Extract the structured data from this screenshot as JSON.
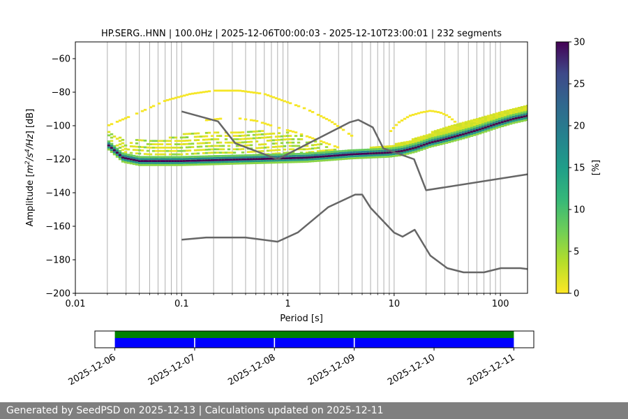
{
  "chart_data": {
    "type": "heatmap",
    "title": "HP.SERG..HNN | 100.0Hz | 2025-12-06T00:00:03 - 2025-12-10T23:00:01 | 232 segments",
    "xlabel": "Period [s]",
    "ylabel_prefix": "Amplitude [",
    "ylabel_m": "m",
    "ylabel_sup1": "2",
    "ylabel_mid": "/s",
    "ylabel_sup2": "4",
    "ylabel_tail": "/Hz",
    "ylabel_suffix": "] [dB]",
    "x_scale": "log",
    "xlim": [
      0.01,
      180
    ],
    "ylim": [
      -200,
      -50
    ],
    "x_ticks": [
      {
        "v": 0.01,
        "label": "0.01"
      },
      {
        "v": 0.1,
        "label": "0.1"
      },
      {
        "v": 1,
        "label": "1"
      },
      {
        "v": 10,
        "label": "10"
      },
      {
        "v": 100,
        "label": "100"
      }
    ],
    "y_ticks": [
      {
        "v": -60,
        "label": "−60"
      },
      {
        "v": -80,
        "label": "−80"
      },
      {
        "v": -100,
        "label": "−100"
      },
      {
        "v": -120,
        "label": "−120"
      },
      {
        "v": -140,
        "label": "−140"
      },
      {
        "v": -160,
        "label": "−160"
      },
      {
        "v": -180,
        "label": "−180"
      },
      {
        "v": -200,
        "label": "−200"
      }
    ],
    "grid": "vertical-log",
    "colorbar": {
      "label": "[%]",
      "range": [
        0,
        30
      ],
      "colormap": "viridis_r",
      "ticks": [
        "0",
        "5",
        "10",
        "15",
        "20",
        "25",
        "30"
      ]
    },
    "heatmap_mode": {
      "x": [
        0.02,
        0.028,
        0.04,
        0.06,
        0.1,
        0.2,
        0.4,
        0.8,
        1.5,
        2.5,
        4,
        6,
        9,
        12,
        16,
        22,
        30,
        45,
        65,
        90,
        130,
        180
      ],
      "y": [
        -111,
        -119,
        -121,
        -121,
        -121,
        -120.5,
        -120,
        -119.5,
        -119,
        -118,
        -117,
        -116.5,
        -116,
        -115,
        -113,
        -110,
        -108,
        -105,
        -102,
        -99,
        -96,
        -94
      ]
    },
    "heatmap_band": {
      "x": [
        0.02,
        0.03,
        0.05,
        0.1,
        0.2,
        0.35,
        0.6,
        1,
        1.5,
        2,
        3
      ],
      "upper": [
        -103,
        -108,
        -108,
        -105,
        -104,
        -104,
        -103,
        -103.5,
        -106,
        -110,
        -115
      ],
      "lower": [
        -113,
        -122,
        -123,
        -123,
        -122,
        -122,
        -121,
        -120,
        -120,
        -119,
        -118
      ]
    },
    "heatmap_arc1": {
      "x": [
        0.02,
        0.04,
        0.07,
        0.12,
        0.2,
        0.35,
        0.6,
        1,
        1.5,
        2.5,
        4,
        5.5
      ],
      "y": [
        -100,
        -92,
        -85,
        -81,
        -79,
        -79,
        -81,
        -86,
        -90,
        -97,
        -106,
        -113
      ]
    },
    "heatmap_arc2": {
      "x": [
        0.15,
        0.3,
        0.5,
        0.8,
        1.2,
        2,
        3,
        4.5
      ],
      "y": [
        -97,
        -95,
        -97,
        -101,
        -104,
        -109,
        -113,
        -116
      ]
    },
    "heatmap_arc3": {
      "x": [
        9,
        11,
        14,
        18,
        22,
        27,
        32,
        38
      ],
      "y": [
        -104,
        -98,
        -94,
        -92,
        -91,
        -92,
        -94,
        -98
      ]
    },
    "heatmap_envelope_upper": {
      "x": [
        6,
        10,
        15,
        22,
        35,
        60,
        100,
        180
      ],
      "y": [
        -113,
        -111,
        -108,
        -104,
        -100,
        -96,
        -92,
        -88
      ]
    },
    "heatmap_envelope_lower": {
      "x": [
        6,
        10,
        15,
        22,
        35,
        60,
        100,
        180
      ],
      "y": [
        -117,
        -116,
        -114,
        -111,
        -107,
        -103,
        -99,
        -95
      ]
    },
    "nlnm_upper_line": {
      "x": [
        0.1,
        0.22,
        0.32,
        0.8,
        3.8,
        4.6,
        6.3,
        7.9,
        15.4,
        20,
        180
      ],
      "y": [
        -91.5,
        -97.4,
        -110.5,
        -120,
        -98,
        -96.5,
        -101,
        -113.5,
        -120,
        -138.5,
        -129
      ]
    },
    "nlnm_lower_line": {
      "x": [
        0.1,
        0.17,
        0.4,
        0.8,
        1.24,
        2.4,
        4.3,
        5,
        6,
        10,
        12,
        15.6,
        21.9,
        31.6,
        45,
        70,
        101,
        154,
        180
      ],
      "y": [
        -168,
        -166.7,
        -166.7,
        -169.2,
        -163.7,
        -148.6,
        -141.1,
        -141.1,
        -149,
        -163.8,
        -166.2,
        -162.1,
        -177.5,
        -185,
        -187.5,
        -187.5,
        -185,
        -185,
        -185.5
      ]
    },
    "timeline": {
      "date_labels": [
        "2025-12-06",
        "2025-12-07",
        "2025-12-08",
        "2025-12-09",
        "2025-12-10",
        "2025-12-11"
      ],
      "range_days": [
        -0.25,
        5.25
      ],
      "data_span_days": [
        0,
        5
      ],
      "gaps_days": [
        1,
        2,
        3,
        5
      ],
      "data_color": "#008000",
      "segment_color": "#0000ff"
    }
  },
  "footer": {
    "text": "Generated by SeedPSD on 2025-12-13 | Calculations updated on 2025-12-11"
  }
}
